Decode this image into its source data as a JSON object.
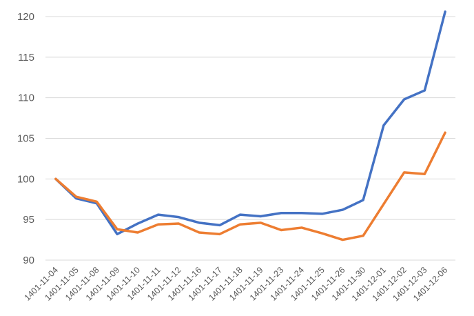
{
  "chart_data": {
    "type": "line",
    "title": "",
    "xlabel": "",
    "ylabel": "",
    "ylim": [
      90,
      120
    ],
    "yticks": [
      90,
      95,
      100,
      105,
      110,
      115,
      120
    ],
    "grid": "horizontal",
    "legend": "none",
    "categories": [
      "1401-11-04",
      "1401-11-05",
      "1401-11-08",
      "1401-11-09",
      "1401-11-10",
      "1401-11-11",
      "1401-11-12",
      "1401-11-16",
      "1401-11-17",
      "1401-11-18",
      "1401-11-19",
      "1401-11-23",
      "1401-11-24",
      "1401-11-25",
      "1401-11-26",
      "1401-11-30",
      "1401-12-01",
      "1401-12-02",
      "1401-12-03",
      "1401-12-06"
    ],
    "series": [
      {
        "color": "#4472C4",
        "values": [
          100,
          97.6,
          97.0,
          93.2,
          94.5,
          95.6,
          95.3,
          94.6,
          94.3,
          95.6,
          95.4,
          95.8,
          95.8,
          95.7,
          96.2,
          97.4,
          106.6,
          109.8,
          110.9,
          120.6
        ]
      },
      {
        "color": "#ED7D31",
        "values": [
          100,
          97.8,
          97.2,
          93.8,
          93.4,
          94.4,
          94.5,
          93.4,
          93.2,
          94.4,
          94.6,
          93.7,
          94.0,
          93.3,
          92.5,
          93.0,
          96.9,
          100.8,
          100.6,
          105.7
        ]
      }
    ]
  }
}
